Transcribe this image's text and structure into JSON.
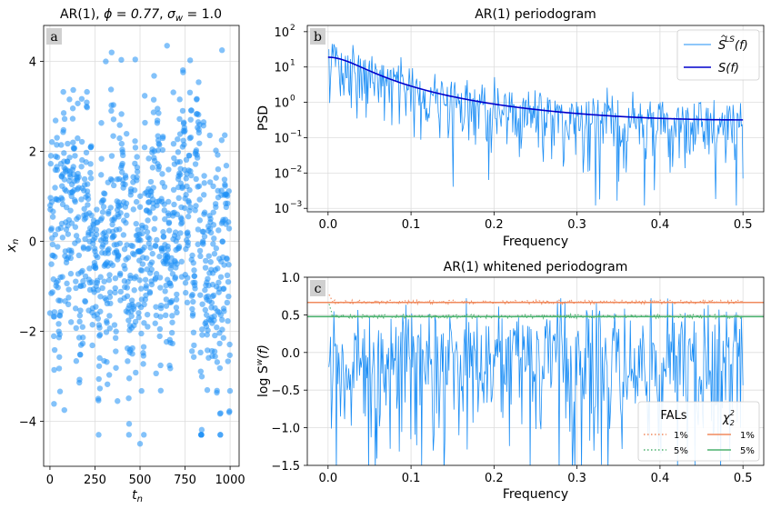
{
  "chart_data": [
    {
      "id": "a",
      "type": "scatter",
      "panel_label": "a",
      "title": "AR(1), ϕ = 0.77, σw = 1.0",
      "title_parts": {
        "prefix": "AR(1), ",
        "phi": "ϕ = 0.77",
        "sigma": "σ",
        "sigma_sub": "w",
        "sigma_val": " = 1.0"
      },
      "xlabel": "t",
      "xlabel_sub": "n",
      "ylabel": "x",
      "ylabel_sub": "n",
      "xlim": [
        -35,
        1050
      ],
      "ylim": [
        -5.0,
        4.8
      ],
      "xticks": [
        0,
        250,
        500,
        750,
        1000
      ],
      "yticks": [
        -4,
        -2,
        0,
        2,
        4
      ],
      "point_color": "#1e8ff5",
      "n_points": 1000,
      "noted_points": [
        {
          "x": 500,
          "y": -4.5
        },
        {
          "x": 650,
          "y": 4.35
        },
        {
          "x": 310,
          "y": 4.0
        },
        {
          "x": 955,
          "y": 4.25
        },
        {
          "x": 80,
          "y": -3.75
        },
        {
          "x": 375,
          "y": -3.55
        }
      ],
      "grid": true
    },
    {
      "id": "b",
      "type": "line",
      "panel_label": "b",
      "title": "AR(1) periodogram",
      "xlabel": "Frequency",
      "ylabel": "PSD",
      "xscale": "linear",
      "yscale": "log",
      "xlim": [
        -0.025,
        0.525
      ],
      "ylim": [
        0.0008,
        150
      ],
      "xticks": [
        "0.0",
        "0.1",
        "0.2",
        "0.3",
        "0.4",
        "0.5"
      ],
      "yticks": [
        {
          "base": "10",
          "exp": "-3"
        },
        {
          "base": "10",
          "exp": "-2"
        },
        {
          "base": "10",
          "exp": "-1"
        },
        {
          "base": "10",
          "exp": "0"
        },
        {
          "base": "10",
          "exp": "1"
        },
        {
          "base": "10",
          "exp": "2"
        }
      ],
      "series": [
        {
          "name": "ŜLS(f)",
          "label_parts": {
            "main": "S",
            "hat": "^",
            "sup": "LS",
            "arg": "(f)"
          },
          "color": "#1e8ff5",
          "kind": "noisy periodogram",
          "f_range": [
            0.0,
            0.5
          ]
        },
        {
          "name": "S(f)",
          "label_parts": {
            "main": "S",
            "arg": "(f)"
          },
          "color": "#0000cc",
          "kind": "theoretical AR(1) spectrum",
          "phi": 0.77,
          "sigma_w": 1.0,
          "values_sample": [
            {
              "f": 0.0,
              "S": 18.9
            },
            {
              "f": 0.1,
              "S": 1.6
            },
            {
              "f": 0.2,
              "S": 0.58
            },
            {
              "f": 0.3,
              "S": 0.38
            },
            {
              "f": 0.4,
              "S": 0.32
            },
            {
              "f": 0.5,
              "S": 0.32
            }
          ]
        }
      ],
      "legend": "top-right",
      "grid": true
    },
    {
      "id": "c",
      "type": "line",
      "panel_label": "c",
      "title": "AR(1) whitened periodogram",
      "xlabel": "Frequency",
      "ylabel": "log S",
      "ylabel_sup": "w",
      "ylabel_arg": "(f)",
      "xlim": [
        -0.025,
        0.525
      ],
      "ylim": [
        -1.5,
        1.0
      ],
      "xticks": [
        "0.0",
        "0.1",
        "0.2",
        "0.3",
        "0.4",
        "0.5"
      ],
      "yticks": [
        "−1.5",
        "−1.0",
        "−0.5",
        "0.0",
        "0.5",
        "1.0"
      ],
      "series": [
        {
          "name": "log whitened periodogram",
          "color": "#1e8ff5",
          "f_range": [
            0.0,
            0.5
          ]
        },
        {
          "name": "1% FAL",
          "color": "#f08a5d",
          "style": "dotted",
          "level": 0.67
        },
        {
          "name": "5% FAL",
          "color": "#4cb26f",
          "style": "dotted",
          "level": 0.48
        },
        {
          "name": "1% χ²",
          "color": "#f08a5d",
          "style": "solid",
          "level": 0.665
        },
        {
          "name": "5% χ²",
          "color": "#4cb26f",
          "style": "solid",
          "level": 0.477
        }
      ],
      "legend": {
        "placement": "bottom-right",
        "col1_title": "FALs",
        "col2_title": "χ",
        "col2_title_sup": "2",
        "col2_title_sub": "2",
        "rows": [
          "1%",
          "5%"
        ]
      },
      "grid": true
    }
  ]
}
